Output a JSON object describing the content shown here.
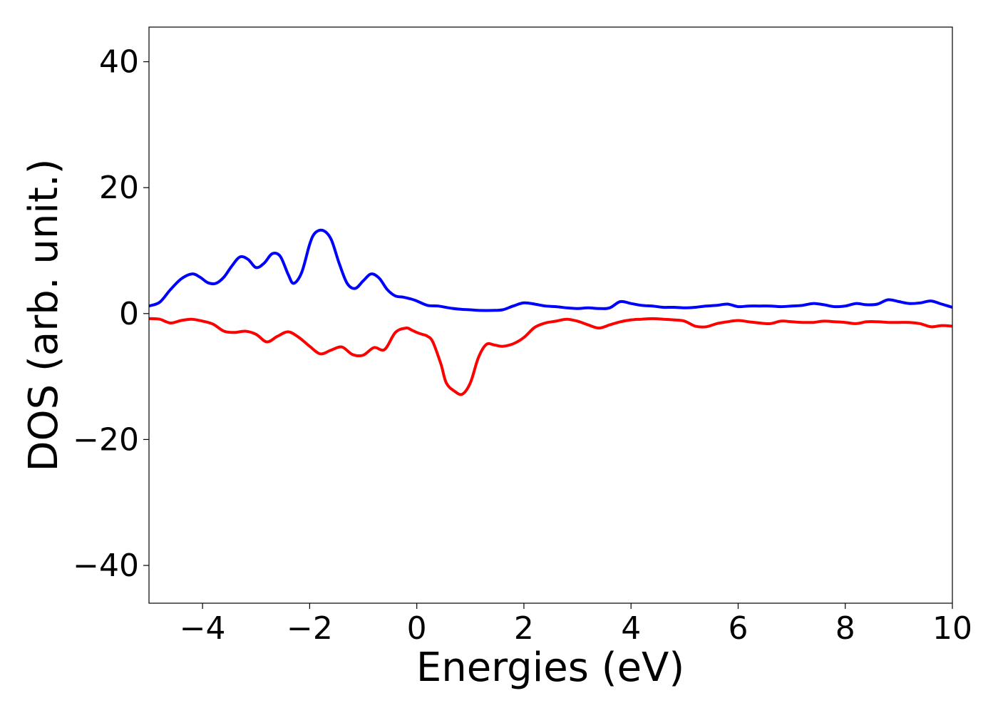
{
  "chart_data": {
    "type": "line",
    "title": "",
    "xlabel": "Energies (eV)",
    "ylabel": "DOS (arb. unit.)",
    "xlim": [
      -5,
      10
    ],
    "ylim": [
      -46,
      45.5
    ],
    "xticks": [
      -4,
      -2,
      0,
      2,
      4,
      6,
      8,
      10
    ],
    "yticks": [
      -40,
      -20,
      0,
      20,
      40
    ],
    "xtick_labels": [
      "−4",
      "−2",
      "0",
      "2",
      "4",
      "6",
      "8",
      "10"
    ],
    "ytick_labels": [
      "−40",
      "−20",
      "0",
      "20",
      "40"
    ],
    "grid": false,
    "series": [
      {
        "color": "#0000ff",
        "x": [
          -5.0,
          -4.8,
          -4.6,
          -4.4,
          -4.2,
          -4.05,
          -3.9,
          -3.75,
          -3.6,
          -3.45,
          -3.3,
          -3.15,
          -3.0,
          -2.85,
          -2.7,
          -2.55,
          -2.4,
          -2.3,
          -2.15,
          -2.0,
          -1.9,
          -1.75,
          -1.6,
          -1.45,
          -1.3,
          -1.15,
          -1.0,
          -0.85,
          -0.7,
          -0.55,
          -0.4,
          -0.25,
          -0.1,
          0.0,
          0.2,
          0.4,
          0.6,
          0.8,
          1.0,
          1.2,
          1.4,
          1.6,
          1.8,
          2.0,
          2.2,
          2.4,
          2.6,
          2.8,
          3.0,
          3.2,
          3.4,
          3.6,
          3.8,
          4.0,
          4.2,
          4.4,
          4.6,
          4.8,
          5.0,
          5.2,
          5.4,
          5.6,
          5.8,
          6.0,
          6.2,
          6.4,
          6.6,
          6.8,
          7.0,
          7.2,
          7.4,
          7.6,
          7.8,
          8.0,
          8.2,
          8.4,
          8.6,
          8.8,
          9.0,
          9.2,
          9.4,
          9.6,
          9.8,
          10.0
        ],
        "y": [
          1.2,
          1.8,
          3.8,
          5.5,
          6.3,
          5.8,
          4.9,
          4.8,
          5.8,
          7.6,
          9.0,
          8.6,
          7.3,
          8.0,
          9.5,
          9.1,
          6.2,
          4.8,
          6.5,
          11.0,
          12.8,
          13.2,
          11.8,
          8.0,
          4.8,
          4.0,
          5.2,
          6.3,
          5.6,
          3.8,
          2.8,
          2.6,
          2.3,
          2.0,
          1.3,
          1.2,
          0.9,
          0.7,
          0.6,
          0.5,
          0.5,
          0.6,
          1.2,
          1.7,
          1.5,
          1.2,
          1.1,
          0.9,
          0.8,
          0.9,
          0.8,
          0.9,
          1.9,
          1.6,
          1.3,
          1.2,
          1.0,
          1.0,
          0.9,
          1.0,
          1.2,
          1.3,
          1.5,
          1.1,
          1.2,
          1.2,
          1.2,
          1.1,
          1.2,
          1.3,
          1.6,
          1.4,
          1.1,
          1.2,
          1.6,
          1.4,
          1.5,
          2.2,
          1.9,
          1.6,
          1.7,
          2.0,
          1.5,
          1.0
        ]
      },
      {
        "color": "#ff0000",
        "x": [
          -5.0,
          -4.8,
          -4.6,
          -4.4,
          -4.2,
          -4.0,
          -3.8,
          -3.6,
          -3.4,
          -3.2,
          -3.0,
          -2.8,
          -2.6,
          -2.4,
          -2.2,
          -2.0,
          -1.8,
          -1.6,
          -1.4,
          -1.2,
          -1.0,
          -0.8,
          -0.6,
          -0.4,
          -0.2,
          -0.1,
          0.0,
          0.1,
          0.2,
          0.3,
          0.45,
          0.55,
          0.7,
          0.85,
          1.0,
          1.15,
          1.3,
          1.45,
          1.6,
          1.8,
          2.0,
          2.2,
          2.4,
          2.6,
          2.8,
          3.0,
          3.2,
          3.4,
          3.6,
          3.8,
          4.0,
          4.2,
          4.4,
          4.6,
          4.8,
          5.0,
          5.2,
          5.4,
          5.6,
          5.8,
          6.0,
          6.2,
          6.4,
          6.6,
          6.8,
          7.0,
          7.2,
          7.4,
          7.6,
          7.8,
          8.0,
          8.2,
          8.4,
          8.6,
          8.8,
          9.0,
          9.2,
          9.4,
          9.6,
          9.8,
          10.0
        ],
        "y": [
          -0.8,
          -0.9,
          -1.5,
          -1.1,
          -0.9,
          -1.2,
          -1.7,
          -2.8,
          -3.0,
          -2.8,
          -3.3,
          -4.5,
          -3.6,
          -2.9,
          -3.8,
          -5.2,
          -6.4,
          -5.8,
          -5.3,
          -6.5,
          -6.6,
          -5.4,
          -5.7,
          -3.0,
          -2.3,
          -2.6,
          -3.0,
          -3.3,
          -3.6,
          -4.5,
          -8.0,
          -11.0,
          -12.3,
          -12.8,
          -11.0,
          -7.0,
          -4.9,
          -5.0,
          -5.2,
          -4.8,
          -3.8,
          -2.2,
          -1.5,
          -1.2,
          -0.9,
          -1.2,
          -1.8,
          -2.3,
          -1.8,
          -1.3,
          -1.0,
          -0.9,
          -0.8,
          -0.9,
          -1.0,
          -1.2,
          -2.0,
          -2.1,
          -1.6,
          -1.3,
          -1.1,
          -1.3,
          -1.5,
          -1.6,
          -1.2,
          -1.3,
          -1.4,
          -1.4,
          -1.2,
          -1.3,
          -1.4,
          -1.6,
          -1.3,
          -1.3,
          -1.4,
          -1.4,
          -1.4,
          -1.6,
          -2.1,
          -1.9,
          -2.0
        ]
      }
    ]
  }
}
